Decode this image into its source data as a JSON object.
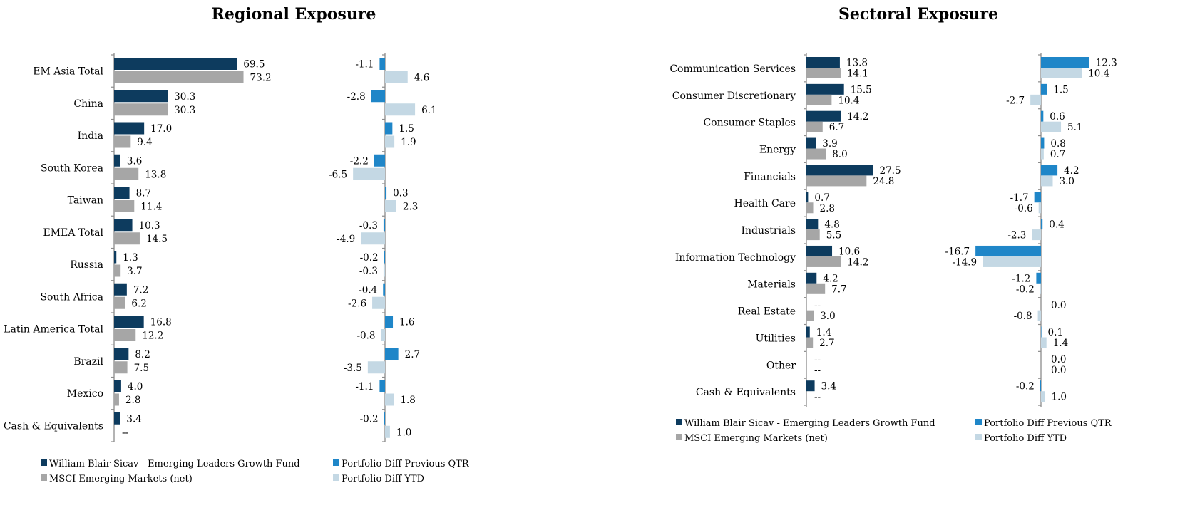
{
  "colors": {
    "fund": "#0d3b5e",
    "benchmark": "#a6a6a6",
    "diff_qtr": "#1f86c8",
    "diff_ytd": "#c4d8e4",
    "axis": "#8c8c8c"
  },
  "chart_data": [
    {
      "type": "bar",
      "title": "Regional Exposure",
      "categories": [
        "EM Asia Total",
        "China",
        "India",
        "South Korea",
        "Taiwan",
        "EMEA Total",
        "Russia",
        "South Africa",
        "Latin America Total",
        "Brazil",
        "Mexico",
        "Cash & Equivalents"
      ],
      "series": [
        {
          "name": "William Blair Sicav - Emerging Leaders Growth Fund",
          "values": [
            69.5,
            30.3,
            17.0,
            3.6,
            8.7,
            10.3,
            1.3,
            7.2,
            16.8,
            8.2,
            4.0,
            3.4
          ],
          "labels": [
            "69.5",
            "30.3",
            "17.0",
            "3.6",
            "8.7",
            "10.3",
            "1.3",
            "7.2",
            "16.8",
            "8.2",
            "4.0",
            "3.4"
          ]
        },
        {
          "name": "MSCI Emerging Markets (net)",
          "values": [
            73.2,
            30.3,
            9.4,
            13.8,
            11.4,
            14.5,
            3.7,
            6.2,
            12.2,
            7.5,
            2.8,
            null
          ],
          "labels": [
            "73.2",
            "30.3",
            "9.4",
            "13.8",
            "11.4",
            "14.5",
            "3.7",
            "6.2",
            "12.2",
            "7.5",
            "2.8",
            "--"
          ]
        },
        {
          "name": "Portfolio Diff Previous QTR",
          "values": [
            -1.1,
            -2.8,
            1.5,
            -2.2,
            0.3,
            -0.3,
            -0.2,
            -0.4,
            1.6,
            2.7,
            -1.1,
            -0.2
          ],
          "labels": [
            "-1.1",
            "-2.8",
            "1.5",
            "-2.2",
            "0.3",
            "-0.3",
            "-0.2",
            "-0.4",
            "1.6",
            "2.7",
            "-1.1",
            "-0.2"
          ]
        },
        {
          "name": "Portfolio Diff YTD",
          "values": [
            4.6,
            6.1,
            1.9,
            -6.5,
            2.3,
            -4.9,
            -0.3,
            -2.6,
            -0.8,
            -3.5,
            1.8,
            1.0
          ],
          "labels": [
            "4.6",
            "6.1",
            "1.9",
            "-6.5",
            "2.3",
            "-4.9",
            "-0.3",
            "-2.6",
            "-0.8",
            "-3.5",
            "1.8",
            "1.0"
          ]
        }
      ],
      "legend": [
        "William Blair Sicav - Emerging Leaders Growth Fund",
        "Portfolio Diff Previous QTR",
        "MSCI Emerging Markets (net)",
        "Portfolio Diff YTD"
      ],
      "legend_position": "bottom",
      "grid": false
    },
    {
      "type": "bar",
      "title": "Sectoral Exposure",
      "categories": [
        "Communication Services",
        "Consumer Discretionary",
        "Consumer Staples",
        "Energy",
        "Financials",
        "Health Care",
        "Industrials",
        "Information Technology",
        "Materials",
        "Real Estate",
        "Utilities",
        "Other",
        "Cash & Equivalents"
      ],
      "series": [
        {
          "name": "William Blair Sicav - Emerging Leaders Growth Fund",
          "values": [
            13.8,
            15.5,
            14.2,
            3.9,
            27.5,
            0.7,
            4.8,
            10.6,
            4.2,
            null,
            1.4,
            null,
            3.4
          ],
          "labels": [
            "13.8",
            "15.5",
            "14.2",
            "3.9",
            "27.5",
            "0.7",
            "4.8",
            "10.6",
            "4.2",
            "--",
            "1.4",
            "--",
            "3.4"
          ]
        },
        {
          "name": "MSCI Emerging Markets (net)",
          "values": [
            14.1,
            10.4,
            6.7,
            8.0,
            24.8,
            2.8,
            5.5,
            14.2,
            7.7,
            3.0,
            2.7,
            null,
            null
          ],
          "labels": [
            "14.1",
            "10.4",
            "6.7",
            "8.0",
            "24.8",
            "2.8",
            "5.5",
            "14.2",
            "7.7",
            "3.0",
            "2.7",
            "--",
            "--"
          ]
        },
        {
          "name": "Portfolio Diff Previous QTR",
          "values": [
            12.3,
            1.5,
            0.6,
            0.8,
            4.2,
            -1.7,
            0.4,
            -16.7,
            -1.2,
            0.0,
            0.1,
            0.0,
            -0.2
          ],
          "labels": [
            "12.3",
            "1.5",
            "0.6",
            "0.8",
            "4.2",
            "-1.7",
            "0.4",
            "-16.7",
            "-1.2",
            "0.0",
            "0.1",
            "0.0",
            "-0.2"
          ]
        },
        {
          "name": "Portfolio Diff YTD",
          "values": [
            10.4,
            -2.7,
            5.1,
            0.7,
            3.0,
            -0.6,
            -2.3,
            -14.9,
            -0.2,
            -0.8,
            1.4,
            0.0,
            1.0
          ],
          "labels": [
            "10.4",
            "-2.7",
            "5.1",
            "0.7",
            "3.0",
            "-0.6",
            "-2.3",
            "-14.9",
            "-0.2",
            "-0.8",
            "1.4",
            "0.0",
            "1.0"
          ]
        }
      ],
      "legend": [
        "William Blair Sicav - Emerging Leaders Growth Fund",
        "Portfolio Diff Previous QTR",
        "MSCI Emerging Markets (net)",
        "Portfolio Diff YTD"
      ],
      "legend_position": "bottom",
      "grid": false
    }
  ]
}
